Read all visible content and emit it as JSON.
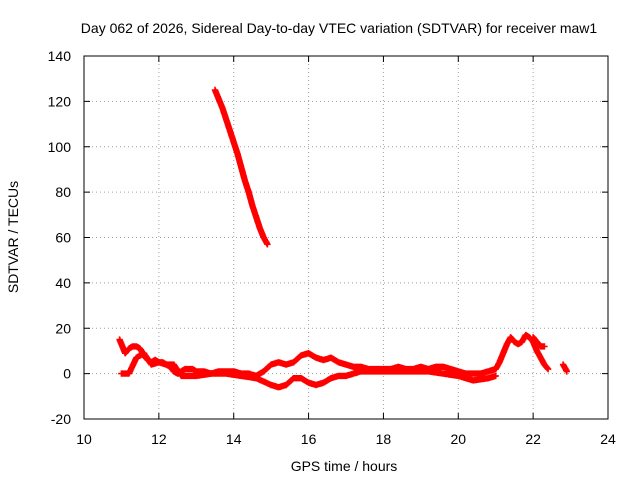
{
  "chart_data": {
    "type": "scatter",
    "title": "Day 062 of 2026, Sidereal Day-to-day VTEC variation (SDTVAR) for receiver maw1",
    "xlabel": "GPS time / hours",
    "ylabel": "SDTVAR / TECUs",
    "xlim": [
      10,
      24
    ],
    "ylim": [
      -20,
      140
    ],
    "xticks": [
      10,
      12,
      14,
      16,
      18,
      20,
      22,
      24
    ],
    "yticks": [
      -20,
      0,
      20,
      40,
      60,
      80,
      100,
      120,
      140
    ],
    "grid": true,
    "marker": "plus",
    "color": "#ff0000",
    "series": [
      {
        "name": "maw1 steep descending arc",
        "x": [
          13.5,
          13.6,
          13.7,
          13.8,
          13.9,
          14.0,
          14.1,
          14.2,
          14.3,
          14.4,
          14.5,
          14.6,
          14.7,
          14.8,
          14.9
        ],
        "y": [
          125,
          121,
          117,
          112,
          107,
          102,
          97,
          91,
          85,
          80,
          74,
          69,
          64,
          60,
          57
        ]
      },
      {
        "name": "maw1 low-level arcs",
        "x": [
          10.95,
          11.0,
          11.05,
          11.1,
          11.2,
          11.3,
          11.4,
          11.5,
          11.6,
          11.7,
          11.8,
          11.9,
          12.0,
          12.1,
          12.2,
          12.3,
          12.4,
          12.5,
          12.6,
          12.7,
          12.8,
          12.9,
          13.0,
          13.2,
          13.4,
          13.6,
          13.8,
          14.0,
          14.2,
          14.4,
          14.6,
          14.8,
          15.0,
          15.2,
          15.4,
          15.6,
          15.8,
          16.0,
          16.2,
          16.4,
          16.6,
          16.8,
          17.0,
          17.2,
          17.4,
          17.6,
          17.8,
          18.0,
          18.2,
          18.4,
          18.6,
          18.8,
          19.0,
          19.2,
          19.4,
          19.6,
          19.8,
          20.0,
          20.2,
          20.4,
          20.6,
          20.8,
          21.0,
          21.1,
          21.2,
          21.3,
          21.4,
          21.5,
          21.6,
          21.7,
          21.8,
          21.9,
          22.0,
          22.1,
          22.2,
          22.3,
          22.4
        ],
        "y": [
          15,
          13,
          11,
          9,
          11,
          12,
          12,
          11,
          8,
          6,
          5,
          6,
          5,
          5,
          4,
          3,
          1,
          0,
          1,
          2,
          2,
          2,
          1,
          1,
          0,
          1,
          1,
          1,
          0,
          0,
          -1,
          1,
          4,
          5,
          4,
          5,
          8,
          9,
          7,
          6,
          7,
          5,
          4,
          3,
          3,
          2,
          2,
          2,
          2,
          3,
          2,
          2,
          3,
          2,
          3,
          3,
          2,
          1,
          0,
          0,
          0,
          1,
          2,
          5,
          9,
          13,
          16,
          14,
          13,
          14,
          17,
          16,
          14,
          10,
          7,
          4,
          2
        ]
      },
      {
        "name": "maw1 secondary arcs",
        "x": [
          11.0,
          11.2,
          11.4,
          11.6,
          11.8,
          12.0,
          12.2,
          12.4,
          12.6,
          13.0,
          13.4,
          13.8,
          14.2,
          14.6,
          15.0,
          15.2,
          15.4,
          15.6,
          15.8,
          16.0,
          16.2,
          16.4,
          16.6,
          16.8,
          17.0,
          17.2,
          17.4,
          17.6,
          17.8,
          18.0,
          18.4,
          18.8,
          19.2,
          19.6,
          20.0,
          20.4,
          20.8,
          21.0,
          22.0,
          22.1,
          22.2,
          22.3,
          22.8,
          22.9
        ],
        "y": [
          0,
          0,
          7,
          9,
          4,
          5,
          4,
          4,
          -1,
          -1,
          0,
          0,
          -1,
          -2,
          -5,
          -6,
          -5,
          -2,
          -2,
          -4,
          -5,
          -4,
          -2,
          -1,
          -1,
          0,
          1,
          1,
          1,
          1,
          1,
          1,
          1,
          0,
          -1,
          -3,
          -2,
          -1,
          16,
          14,
          12,
          12,
          4,
          1
        ]
      }
    ]
  }
}
